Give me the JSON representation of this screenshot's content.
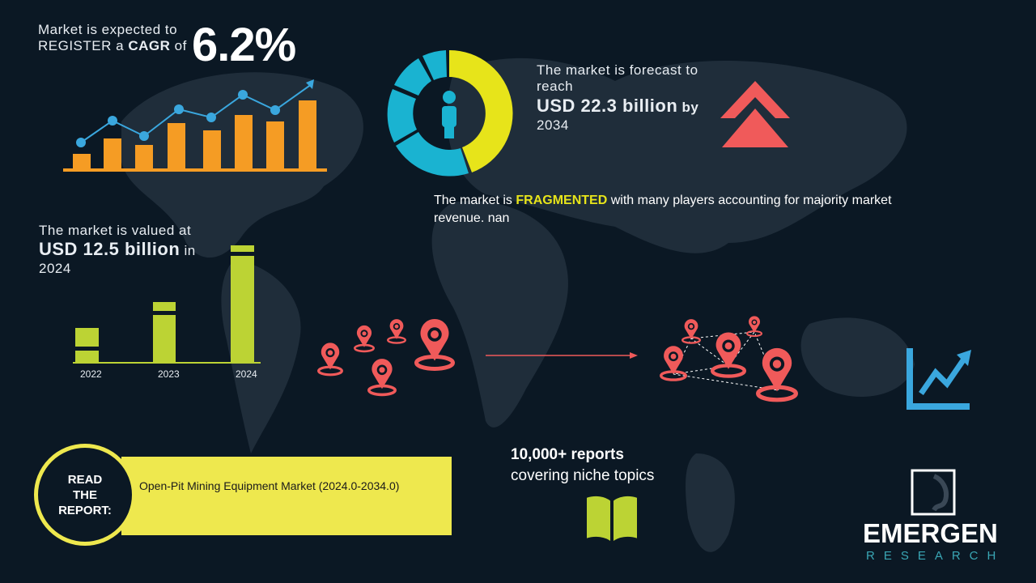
{
  "cagr": {
    "line1": "Market is expected to",
    "line2_pre": "REGISTER a",
    "line2_bold": "CAGR",
    "line2_post": "of",
    "value": "6.2%"
  },
  "forecast": {
    "line1": "The market is forecast to",
    "line2": "reach",
    "value": "USD 22.3 billion",
    "by": "by",
    "year": "2034"
  },
  "fragmented": {
    "pre": "The market is",
    "highlight": "FRAGMENTED",
    "post": "with many players accounting for majority market",
    "line2": "revenue. nan"
  },
  "valued": {
    "line1": "The market is valued at",
    "value": "USD 12.5 billion",
    "in": "in",
    "year": "2024"
  },
  "year_bars": {
    "labels": [
      "2022",
      "2023",
      "2024"
    ]
  },
  "reports": {
    "line1": "10,000+ reports",
    "line2": "covering niche topics"
  },
  "read_report": {
    "label_lines": [
      "READ",
      "THE",
      "REPORT:"
    ],
    "title": "Open-Pit Mining Equipment Market (2024.0-2034.0)"
  },
  "logo": {
    "name": "EMERGEN",
    "sub": "RESEARCH"
  },
  "colors": {
    "background": "#0b1824",
    "orange": "#f59c24",
    "blue": "#3aa7de",
    "yellow": "#e7e41a",
    "cyan": "#1ab3d1",
    "red": "#f05a5a",
    "green": "#bcd334"
  },
  "icons": [
    "growth-chart-icon",
    "donut-person-icon",
    "double-chevron-up-icon",
    "location-pin-icon",
    "trend-up-icon",
    "open-book-icon"
  ]
}
